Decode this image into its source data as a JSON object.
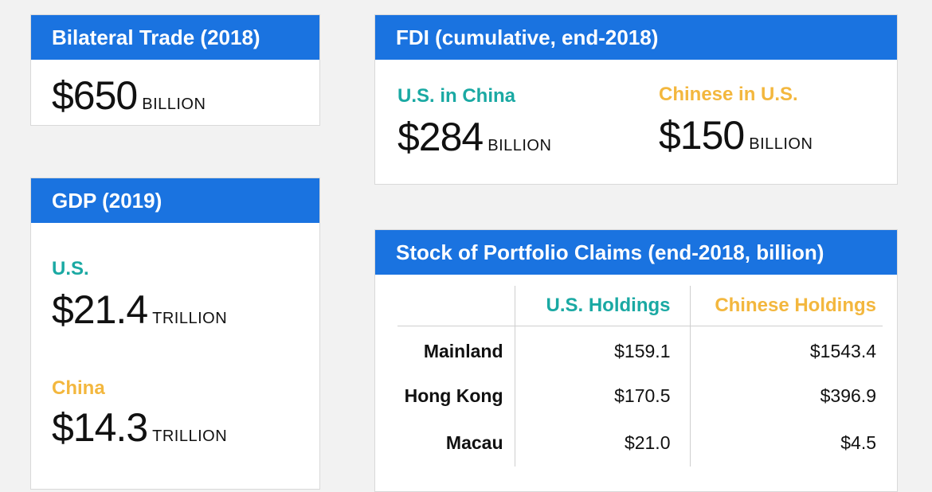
{
  "colors": {
    "header_bg": "#1a73e0",
    "us_accent": "#1aa9a3",
    "china_accent": "#f3b73e",
    "page_bg": "#f2f2f2"
  },
  "trade": {
    "title": "Bilateral Trade (2018)",
    "value": "$650",
    "unit": "BILLION"
  },
  "gdp": {
    "title": "GDP (2019)",
    "us_label": "U.S.",
    "us_value": "$21.4",
    "us_unit": "TRILLION",
    "china_label": "China",
    "china_value": "$14.3",
    "china_unit": "TRILLION"
  },
  "fdi": {
    "title": "FDI (cumulative, end-2018)",
    "us_label": "U.S. in China",
    "us_value": "$284",
    "us_unit": "BILLION",
    "china_label": "Chinese in U.S.",
    "china_value": "$150",
    "china_unit": "BILLION"
  },
  "portfolio": {
    "title": "Stock of Portfolio Claims (end-2018, billion)",
    "columns": [
      "",
      "U.S. Holdings",
      "Chinese Holdings"
    ],
    "rows": [
      {
        "region": "Mainland",
        "us": "$159.1",
        "cn": "$1543.4"
      },
      {
        "region": "Hong Kong",
        "us": "$170.5",
        "cn": "$396.9"
      },
      {
        "region": "Macau",
        "us": "$21.0",
        "cn": "$4.5"
      }
    ]
  }
}
